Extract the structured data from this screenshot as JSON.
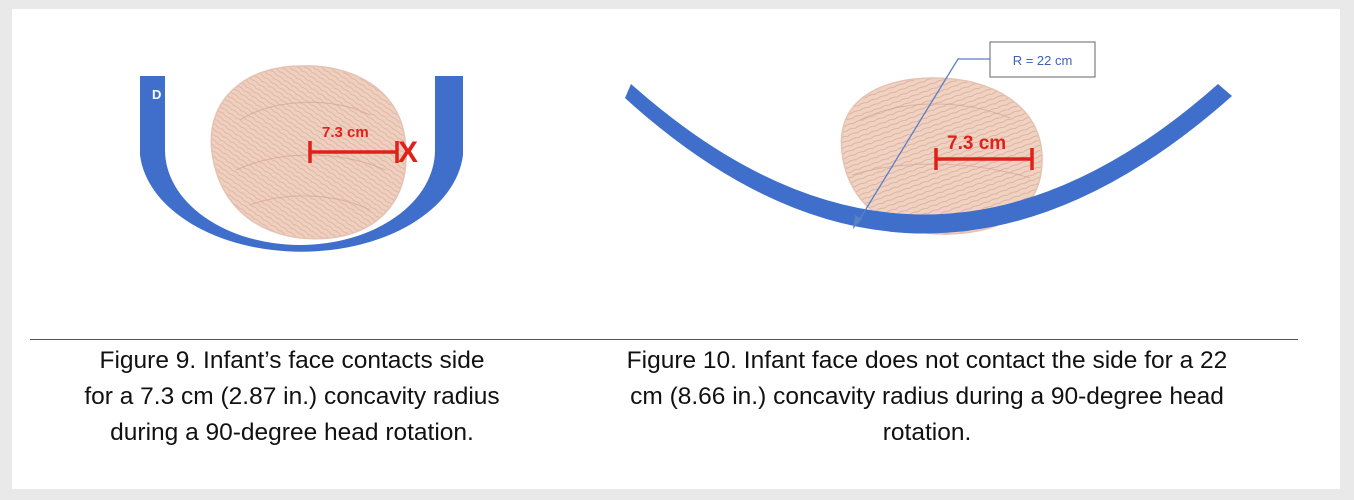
{
  "colors": {
    "cradle_blue": "#3f6fcb",
    "measure_red": "#e0201a",
    "head_skin": "#efcfbf",
    "head_hair": "#d9ab98",
    "callout_blue": "#5b7fc4",
    "caption_text": "#111111"
  },
  "figure9": {
    "corner_letter": "D",
    "measure_label": "7.3 cm",
    "contact_marker": "X",
    "caption_lines": [
      "Figure 9.  Infant’s face contacts side",
      "for a 7.3 cm (2.87 in.) concavity radius",
      "during a 90-degree head rotation."
    ]
  },
  "figure10": {
    "radius_callout": "R = 22 cm",
    "measure_label": "7.3 cm",
    "caption_lines": [
      "Figure 10.  Infant face does not contact the side for a 22",
      "cm (8.66 in.) concavity radius during a 90-degree head",
      "rotation."
    ]
  }
}
